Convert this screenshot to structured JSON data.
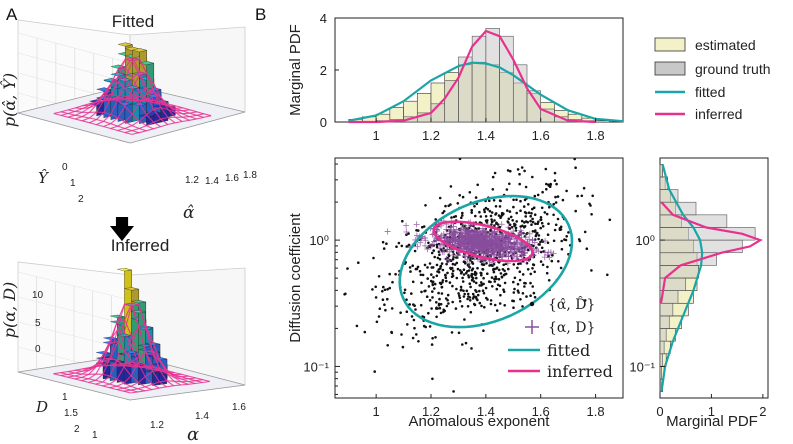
{
  "panel_labels": {
    "a": "A",
    "b": "B"
  },
  "left": {
    "top_title": "Fitted",
    "bottom_title": "Inferred",
    "top_zlabel": "p(α̂, Ŷ)",
    "bottom_zlabel": "p(α, D)",
    "top_ylabel": "Ŷ",
    "top_xlabel": "α̂",
    "bottom_ylabel": "D",
    "bottom_xlabel": "α",
    "top_xticks": [
      "1.2",
      "1.4",
      "1.6",
      "1.8"
    ],
    "top_yticks": [
      "0",
      "1",
      "2"
    ],
    "bottom_zticks": [
      "0",
      "5",
      "10"
    ],
    "bottom_xticks": [
      "1",
      "1.2",
      "1.4",
      "1.6"
    ],
    "bottom_yticks": [
      "1",
      "1.5",
      "2"
    ],
    "arrow_glyph": "🡇"
  },
  "colors": {
    "fitted": "#1aa6a6",
    "inferred": "#e8318f",
    "estimated_fill": "#f3f1c8",
    "ground_truth_fill": "#c8c8c8",
    "scatter_fitted": "#111111",
    "scatter_inferred": "#8a4e9e"
  },
  "legend": {
    "estimated": "estimated",
    "ground_truth": "ground truth",
    "fitted": "fitted",
    "inferred": "inferred"
  },
  "scatter_legend": {
    "fitted_points": "{α̂, D̂}",
    "inferred_points": "{α, D}",
    "fitted": "fitted",
    "inferred": "inferred"
  },
  "chart_data": [
    {
      "type": "bar",
      "name": "top-marginal",
      "ylabel": "Marginal PDF",
      "xlim": [
        0.85,
        1.9
      ],
      "ylim": [
        0,
        4
      ],
      "xticks": [
        "1",
        "1.2",
        "1.4",
        "1.6",
        "1.8"
      ],
      "xtick_values": [
        1.0,
        1.2,
        1.4,
        1.6,
        1.8
      ],
      "yticks": [
        "0",
        "2",
        "4"
      ],
      "ytick_values": [
        0,
        2,
        4
      ],
      "bin_edges": [
        0.9,
        0.95,
        1.0,
        1.05,
        1.1,
        1.15,
        1.2,
        1.25,
        1.3,
        1.35,
        1.4,
        1.45,
        1.5,
        1.55,
        1.6,
        1.65,
        1.7,
        1.75,
        1.8,
        1.85
      ],
      "estimated_values": [
        0.1,
        0.2,
        0.3,
        0.55,
        0.8,
        1.1,
        1.5,
        1.9,
        2.2,
        2.3,
        2.2,
        1.9,
        1.5,
        1.1,
        0.75,
        0.45,
        0.3,
        0.15,
        0.05
      ],
      "ground_truth_values": [
        0.0,
        0.0,
        0.05,
        0.1,
        0.2,
        0.35,
        0.7,
        1.6,
        2.5,
        3.3,
        3.6,
        3.3,
        2.2,
        1.2,
        0.5,
        0.2,
        0.1,
        0.05,
        0.0
      ],
      "fitted_curve": {
        "x": [
          0.9,
          1.0,
          1.1,
          1.2,
          1.3,
          1.35,
          1.4,
          1.45,
          1.5,
          1.6,
          1.7,
          1.8,
          1.9
        ],
        "y": [
          0.05,
          0.25,
          0.8,
          1.6,
          2.15,
          2.28,
          2.25,
          2.1,
          1.8,
          1.05,
          0.45,
          0.12,
          0.03
        ]
      },
      "inferred_curve": {
        "x": [
          0.9,
          1.0,
          1.1,
          1.2,
          1.25,
          1.3,
          1.35,
          1.4,
          1.45,
          1.5,
          1.55,
          1.6,
          1.7,
          1.8
        ],
        "y": [
          0.0,
          0.0,
          0.05,
          0.35,
          0.9,
          1.7,
          2.9,
          3.5,
          3.3,
          2.4,
          1.3,
          0.5,
          0.05,
          0.0
        ]
      }
    },
    {
      "type": "scatter",
      "name": "main-scatter",
      "xlabel": "Anomalous exponent",
      "ylabel": "Diffusion coefficient",
      "xlim": [
        0.85,
        1.9
      ],
      "ylim_log10": [
        -1.25,
        0.65
      ],
      "xticks": [
        "1",
        "1.2",
        "1.4",
        "1.6",
        "1.8"
      ],
      "xtick_values": [
        1.0,
        1.2,
        1.4,
        1.6,
        1.8
      ],
      "yticks": [
        "10⁰",
        "10⁻¹"
      ],
      "ytick_log10": [
        0,
        -1
      ],
      "fitted_points": {
        "center_x": 1.38,
        "center_log10": -0.12,
        "sd_x": 0.17,
        "sd_log10": 0.28,
        "rho": 0.45,
        "count": 900
      },
      "inferred_points": {
        "center_x": 1.38,
        "center_log10": -0.02,
        "sd_x": 0.09,
        "sd_log10": 0.06,
        "rho": -0.35,
        "count": 700
      },
      "fitted_ellipse": {
        "center_x": 1.4,
        "center_log10": -0.17,
        "rx": 0.33,
        "ry_log10": 0.47,
        "angle_deg": 24
      },
      "inferred_ellipse": {
        "center_x": 1.39,
        "center_log10": -0.01,
        "rx": 0.185,
        "ry_log10": 0.125,
        "angle_deg": -14
      }
    },
    {
      "type": "bar",
      "name": "right-marginal",
      "orientation": "horizontal",
      "xlabel": "Marginal PDF",
      "xlim": [
        0,
        2.1
      ],
      "xticks": [
        "0",
        "1",
        "2"
      ],
      "xtick_values": [
        0,
        1,
        2
      ],
      "ylim_log10": [
        -1.25,
        0.65
      ],
      "yticks": [
        "10⁰",
        "10⁻¹"
      ],
      "ytick_log10": [
        0,
        -1
      ],
      "bin_edges_log10": [
        -1.2,
        -1.1,
        -1.0,
        -0.9,
        -0.8,
        -0.7,
        -0.6,
        -0.5,
        -0.4,
        -0.3,
        -0.2,
        -0.1,
        0.0,
        0.1,
        0.2,
        0.3,
        0.4,
        0.5,
        0.6
      ],
      "estimated_values": [
        0.05,
        0.08,
        0.12,
        0.2,
        0.3,
        0.42,
        0.55,
        0.65,
        0.72,
        0.75,
        0.72,
        0.65,
        0.55,
        0.42,
        0.3,
        0.2,
        0.1,
        0.05
      ],
      "ground_truth_values": [
        0.02,
        0.03,
        0.05,
        0.08,
        0.12,
        0.18,
        0.25,
        0.35,
        0.5,
        0.75,
        1.1,
        1.6,
        1.85,
        1.3,
        0.7,
        0.35,
        0.15,
        0.05
      ],
      "fitted_curve": {
        "log10": [
          -1.2,
          -1.0,
          -0.8,
          -0.6,
          -0.4,
          -0.2,
          -0.1,
          0.0,
          0.1,
          0.2,
          0.4,
          0.6
        ],
        "y": [
          0.03,
          0.1,
          0.25,
          0.45,
          0.65,
          0.8,
          0.82,
          0.78,
          0.65,
          0.45,
          0.18,
          0.05
        ]
      },
      "inferred_curve": {
        "log10": [
          -0.5,
          -0.3,
          -0.2,
          -0.1,
          -0.05,
          0.0,
          0.05,
          0.1,
          0.2,
          0.3
        ],
        "y": [
          0.02,
          0.1,
          0.4,
          1.2,
          1.75,
          1.95,
          1.6,
          0.9,
          0.25,
          0.03
        ]
      }
    }
  ]
}
